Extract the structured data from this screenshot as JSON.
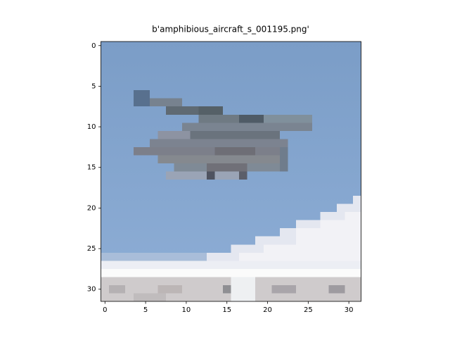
{
  "chart_data": {
    "type": "image",
    "title": "b'amphibious_aircraft_s_001195.png'",
    "xlim": [
      -0.5,
      31.5
    ],
    "ylim": [
      31.5,
      -0.5
    ],
    "xticks": [
      0,
      5,
      10,
      15,
      20,
      25,
      30
    ],
    "yticks": [
      0,
      5,
      10,
      15,
      20,
      25,
      30
    ]
  }
}
